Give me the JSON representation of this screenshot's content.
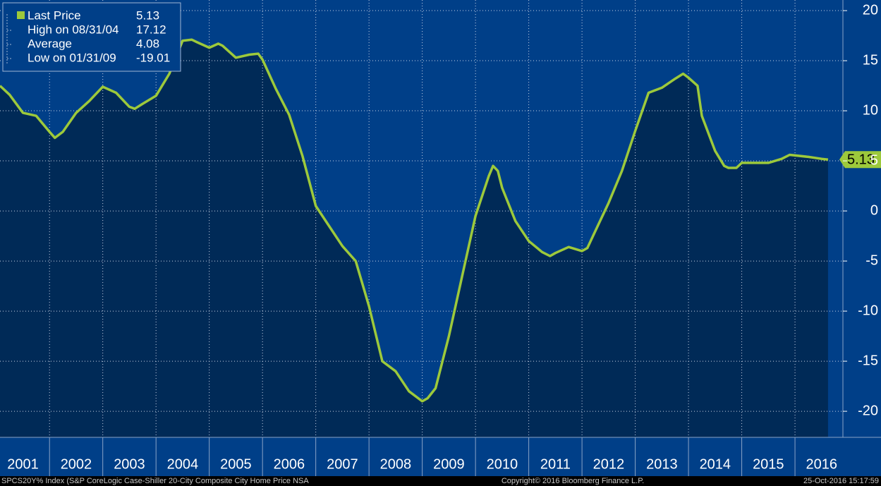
{
  "chart_data": {
    "type": "line",
    "series": [
      {
        "name": "Last Price",
        "color": "#9dc93b",
        "values": [
          12.5,
          11.6,
          9.8,
          9.5,
          7.9,
          7.3,
          7.9,
          9.8,
          11.0,
          12.4,
          11.8,
          10.4,
          10.2,
          10.7,
          11.5,
          13.7,
          17.0,
          17.1,
          16.9,
          16.3,
          16.7,
          16.5,
          15.3,
          15.6,
          15.7,
          15.1,
          12.2,
          9.6,
          5.5,
          0.5,
          -1.5,
          -3.5,
          -5.0,
          -9.5,
          -15.0,
          -16.0,
          -18.0,
          -19.0,
          -18.7,
          -17.7,
          -12.5,
          -6.5,
          -0.5,
          3.5,
          4.5,
          4.0,
          2.3,
          -1.0,
          -3.0,
          -4.1,
          -4.5,
          -4.2,
          -3.6,
          -4.0,
          -3.7,
          -2.0,
          0.8,
          4.0,
          8.0,
          11.8,
          12.3,
          13.2,
          13.7,
          13.3,
          12.5,
          9.5,
          6.0,
          4.5,
          4.3,
          4.3,
          4.8,
          4.8,
          5.2,
          5.6,
          5.4,
          5.2,
          5.13
        ]
      }
    ],
    "x": [
      2001.07,
      2001.25,
      2001.5,
      2001.75,
      2002.0,
      2002.1,
      2002.25,
      2002.5,
      2002.75,
      2003.0,
      2003.25,
      2003.5,
      2003.6,
      2003.75,
      2004.0,
      2004.25,
      2004.5,
      2004.67,
      2004.75,
      2005.0,
      2005.17,
      2005.25,
      2005.5,
      2005.75,
      2005.92,
      2006.0,
      2006.25,
      2006.5,
      2006.75,
      2007.0,
      2007.25,
      2007.5,
      2007.75,
      2008.0,
      2008.25,
      2008.5,
      2008.75,
      2009.0,
      2009.1,
      2009.25,
      2009.5,
      2009.75,
      2010.0,
      2010.25,
      2010.33,
      2010.42,
      2010.5,
      2010.75,
      2011.0,
      2011.25,
      2011.4,
      2011.5,
      2011.75,
      2012.0,
      2012.1,
      2012.25,
      2012.5,
      2012.75,
      2013.0,
      2013.25,
      2013.5,
      2013.75,
      2013.9,
      2014.0,
      2014.17,
      2014.25,
      2014.5,
      2014.67,
      2014.75,
      2014.9,
      2015.0,
      2015.5,
      2015.75,
      2015.9,
      2016.25,
      2016.5,
      2016.62
    ],
    "xlim": [
      2001.07,
      2016.9
    ],
    "xticks": [
      2001,
      2002,
      2003,
      2004,
      2005,
      2006,
      2007,
      2008,
      2009,
      2010,
      2011,
      2012,
      2013,
      2014,
      2015,
      2016
    ],
    "ylim": [
      -22.6,
      21.06
    ],
    "yticks": [
      -20,
      -15,
      -10,
      -5,
      0,
      5,
      10,
      15,
      20
    ],
    "grid": true,
    "stats": [
      {
        "label": "High on 08/31/04",
        "value": 17.12
      },
      {
        "label": "Average",
        "value": 4.08
      },
      {
        "label": "Low on 01/31/09",
        "value": -19.01
      }
    ]
  },
  "footer": {
    "left": "SPCS20Y% Index (S&P CoreLogic Case-Shiller 20-City Composite City Home Price NSA",
    "center": "Copyright© 2016 Bloomberg Finance L.P.",
    "right": "25-Oct-2016 15:17:59"
  }
}
